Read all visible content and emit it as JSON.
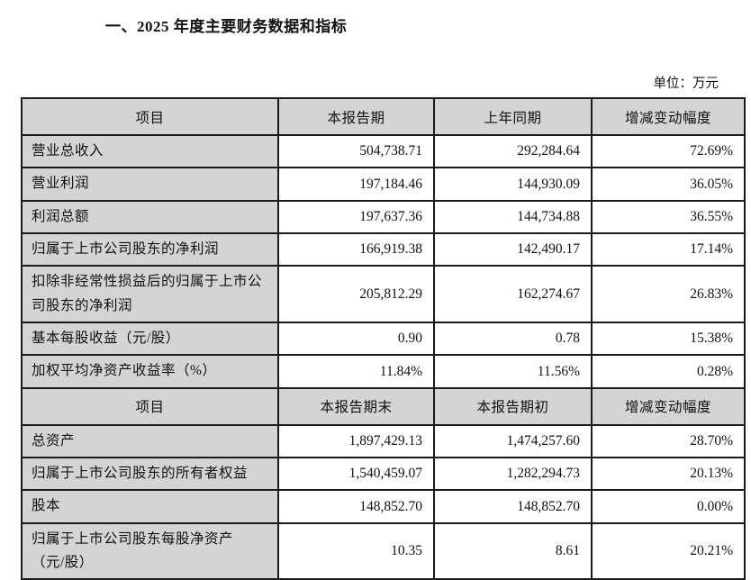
{
  "page": {
    "title": "一、2025 年度主要财务数据和指标",
    "unit_label": "单位：万元"
  },
  "colors": {
    "header_bg": "#d4d4d4",
    "border": "#1a1a1a",
    "text": "#111111",
    "page_bg": "#ffffff"
  },
  "table": {
    "sections": [
      {
        "header": [
          "项目",
          "本报告期",
          "上年同期",
          "增减变动幅度"
        ],
        "rows": [
          {
            "label": "营业总收入",
            "values": [
              "504,738.71",
              "292,284.64",
              "72.69%"
            ]
          },
          {
            "label": "营业利润",
            "values": [
              "197,184.46",
              "144,930.09",
              "36.05%"
            ]
          },
          {
            "label": "利润总额",
            "values": [
              "197,637.36",
              "144,734.88",
              "36.55%"
            ]
          },
          {
            "label": "归属于上市公司股东的净利润",
            "values": [
              "166,919.38",
              "142,490.17",
              "17.14%"
            ]
          },
          {
            "label": "扣除非经常性损益后的归属于上市公司股东的净利润",
            "values": [
              "205,812.29",
              "162,274.67",
              "26.83%"
            ]
          },
          {
            "label": "基本每股收益（元/股）",
            "values": [
              "0.90",
              "0.78",
              "15.38%"
            ]
          },
          {
            "label": "加权平均净资产收益率（%）",
            "values": [
              "11.84%",
              "11.56%",
              "0.28%"
            ]
          }
        ]
      },
      {
        "header": [
          "项目",
          "本报告期末",
          "本报告期初",
          "增减变动幅度"
        ],
        "rows": [
          {
            "label": "总资产",
            "values": [
              "1,897,429.13",
              "1,474,257.60",
              "28.70%"
            ]
          },
          {
            "label": "归属于上市公司股东的所有者权益",
            "values": [
              "1,540,459.07",
              "1,282,294.73",
              "20.13%"
            ]
          },
          {
            "label": "股本",
            "values": [
              "148,852.70",
              "148,852.70",
              "0.00%"
            ]
          },
          {
            "label": "归属于上市公司股东每股净资产（元/股）",
            "values": [
              "10.35",
              "8.61",
              "20.21%"
            ]
          }
        ]
      }
    ]
  }
}
